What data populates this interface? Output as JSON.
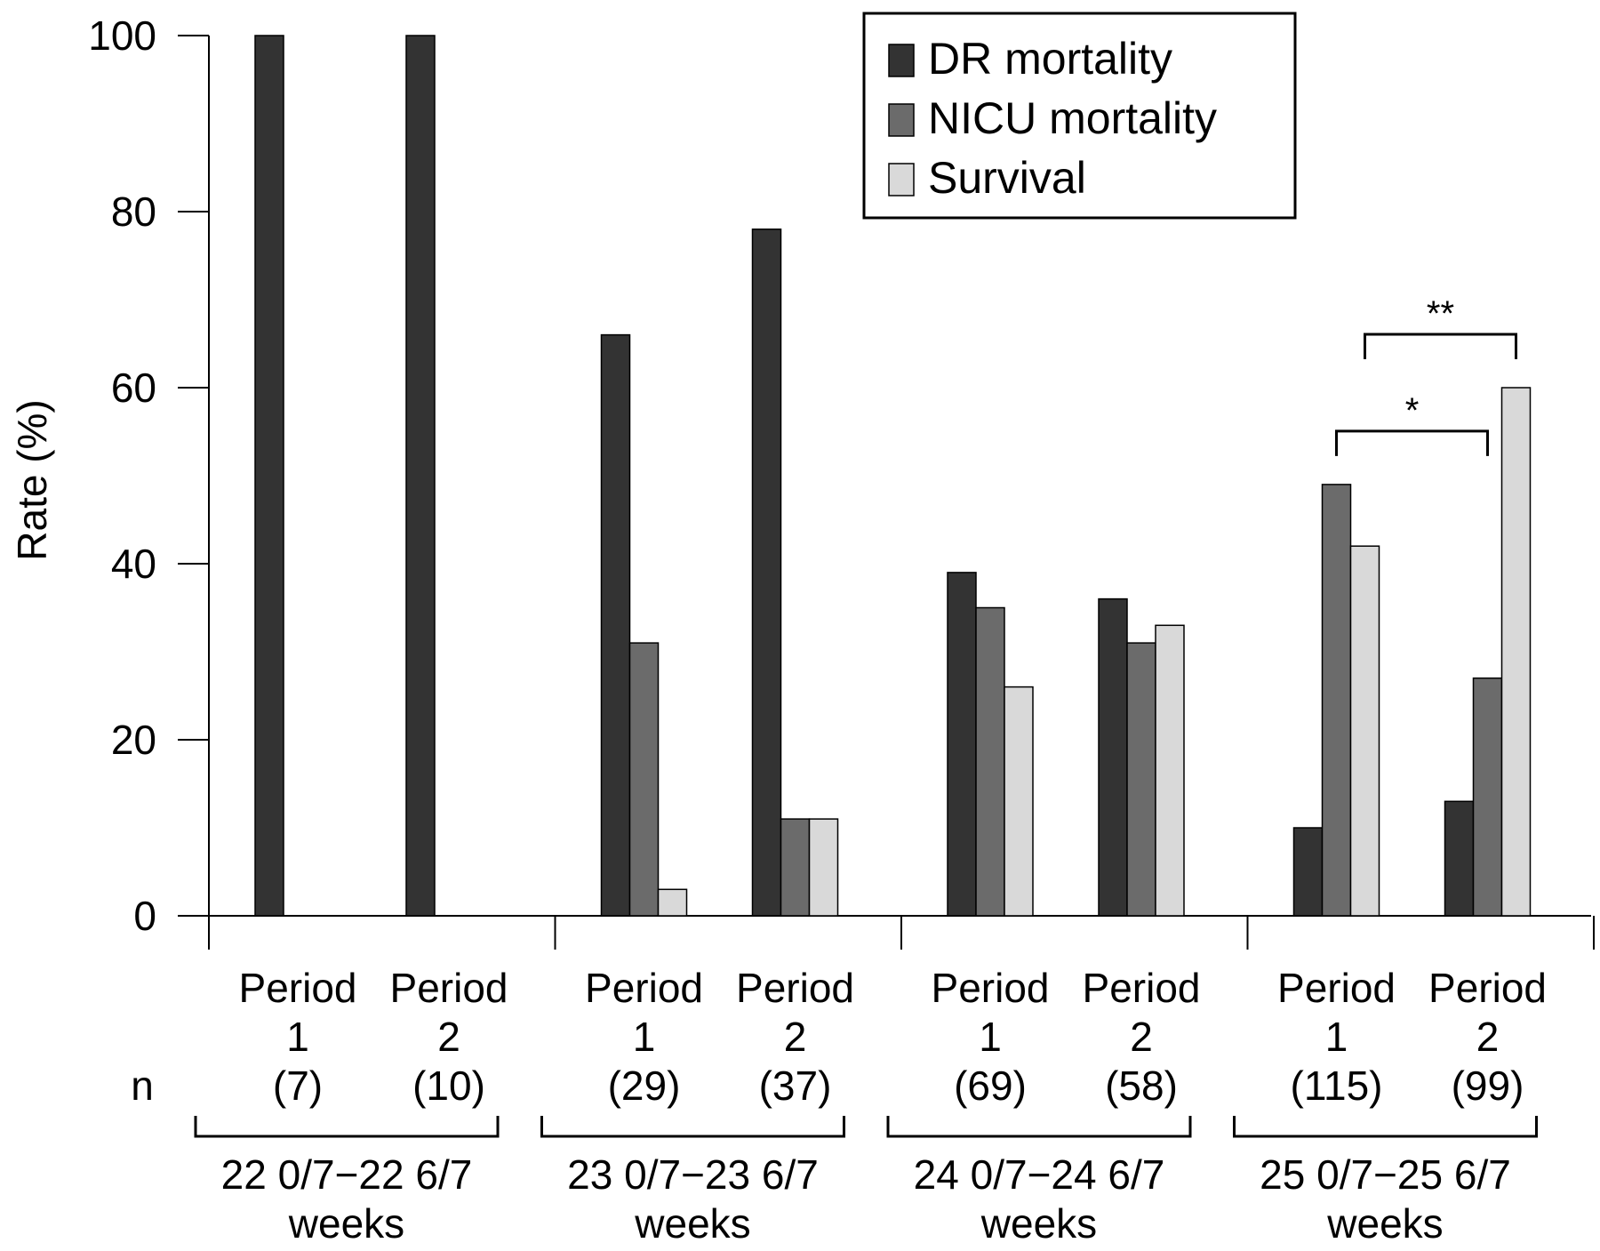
{
  "chart_data": {
    "type": "bar",
    "ylabel": "Rate (%)",
    "ylim": [
      0,
      100
    ],
    "yticks": [
      0,
      20,
      40,
      60,
      80,
      100
    ],
    "grid": false,
    "legend_position": "top-right",
    "n_label": "n",
    "series": [
      {
        "name": "DR mortality",
        "color": "#333333",
        "values": [
          100,
          100,
          66,
          78,
          39,
          36,
          10,
          13
        ]
      },
      {
        "name": "NICU mortality",
        "color": "#6b6b6b",
        "values": [
          0,
          0,
          31,
          11,
          35,
          31,
          49,
          27
        ]
      },
      {
        "name": "Survival",
        "color": "#d9d9d9",
        "values": [
          0,
          0,
          3,
          11,
          26,
          33,
          42,
          60
        ]
      }
    ],
    "groups": [
      {
        "label_line1": "22 0/7−22 6/7",
        "label_line2": "weeks",
        "periods": [
          {
            "line1": "Period",
            "line2": "1",
            "n": "(7)"
          },
          {
            "line1": "Period",
            "line2": "2",
            "n": "(10)"
          }
        ]
      },
      {
        "label_line1": "23 0/7−23 6/7",
        "label_line2": "weeks",
        "periods": [
          {
            "line1": "Period",
            "line2": "1",
            "n": "(29)"
          },
          {
            "line1": "Period",
            "line2": "2",
            "n": "(37)"
          }
        ]
      },
      {
        "label_line1": "24 0/7−24 6/7",
        "label_line2": "weeks",
        "periods": [
          {
            "line1": "Period",
            "line2": "1",
            "n": "(69)"
          },
          {
            "line1": "Period",
            "line2": "2",
            "n": "(58)"
          }
        ]
      },
      {
        "label_line1": "25 0/7−25 6/7",
        "label_line2": "weeks",
        "periods": [
          {
            "line1": "Period",
            "line2": "1",
            "n": "(115)"
          },
          {
            "line1": "Period",
            "line2": "2",
            "n": "(99)"
          }
        ]
      }
    ],
    "annotations": [
      {
        "label": "*",
        "from": {
          "period": 6,
          "series": 1
        },
        "to": {
          "period": 7,
          "series": 1
        }
      },
      {
        "label": "**",
        "from": {
          "period": 6,
          "series": 2
        },
        "to": {
          "period": 7,
          "series": 2
        }
      }
    ]
  }
}
